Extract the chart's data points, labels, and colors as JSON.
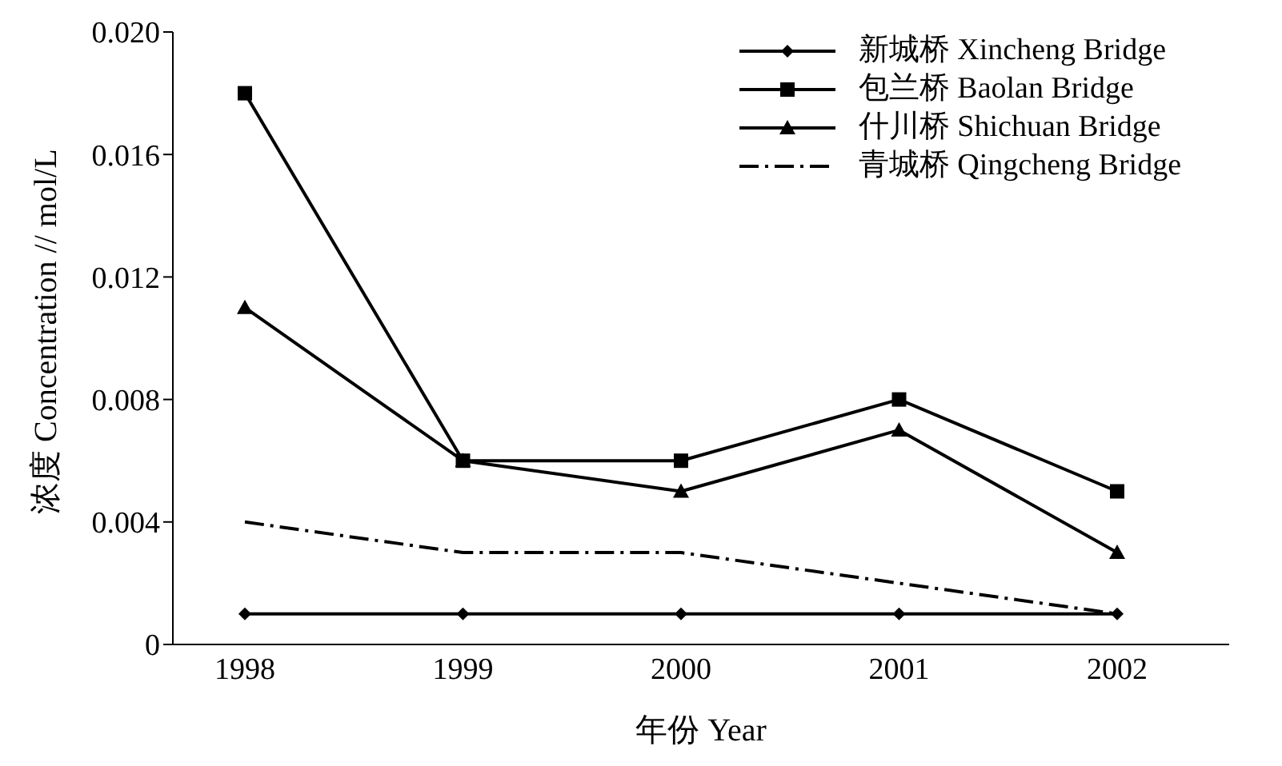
{
  "chart_data": {
    "type": "line",
    "xlabel": "年份 Year",
    "ylabel": "浓度 Concentration // mol/L",
    "categories": [
      "1998",
      "1999",
      "2000",
      "2001",
      "2002"
    ],
    "series": [
      {
        "name": "新城桥 Xincheng Bridge",
        "color": "#000000",
        "marker": "diamond",
        "line_style": "solid",
        "values": [
          0.001,
          0.001,
          0.001,
          0.001,
          0.001
        ]
      },
      {
        "name": "包兰桥 Baolan Bridge",
        "color": "#000000",
        "marker": "square",
        "line_style": "solid",
        "values": [
          0.018,
          0.006,
          0.006,
          0.008,
          0.005
        ]
      },
      {
        "name": "什川桥 Shichuan Bridge",
        "color": "#000000",
        "marker": "triangle",
        "line_style": "solid",
        "values": [
          0.011,
          0.006,
          0.005,
          0.007,
          0.003
        ]
      },
      {
        "name": "青城桥 Qingcheng Bridge",
        "color": "#000000",
        "marker": "none",
        "line_style": "dashed",
        "values": [
          0.004,
          0.003,
          0.003,
          0.002,
          0.001
        ]
      }
    ],
    "ylim": [
      0,
      0.02
    ],
    "yticks": [
      0,
      0.004,
      0.008,
      0.012,
      0.016,
      {
        "value": 0.02,
        "label": "0.020"
      }
    ],
    "grid": false,
    "legend": "top right"
  }
}
